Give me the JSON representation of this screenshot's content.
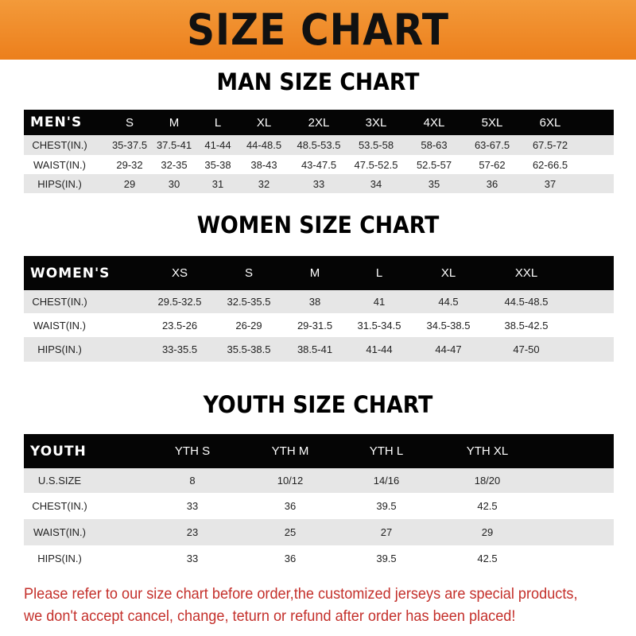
{
  "title": "SIZE CHART",
  "colors": {
    "banner": "#ef8a26",
    "header_row": "#050505",
    "stripe": "#e6e6e6",
    "note": "#c4302b"
  },
  "men": {
    "heading": "MAN SIZE CHART",
    "columns": [
      "MEN'S",
      "S",
      "M",
      "L",
      "XL",
      "2XL",
      "3XL",
      "4XL",
      "5XL",
      "6XL"
    ],
    "rows": [
      [
        "CHEST(IN.)",
        "35-37.5",
        "37.5-41",
        "41-44",
        "44-48.5",
        "48.5-53.5",
        "53.5-58",
        "58-63",
        "63-67.5",
        "67.5-72"
      ],
      [
        "WAIST(IN.)",
        "29-32",
        "32-35",
        "35-38",
        "38-43",
        "43-47.5",
        "47.5-52.5",
        "52.5-57",
        "57-62",
        "62-66.5"
      ],
      [
        "HIPS(IN.)",
        "29",
        "30",
        "31",
        "32",
        "33",
        "34",
        "35",
        "36",
        "37"
      ]
    ]
  },
  "women": {
    "heading": "WOMEN SIZE CHART",
    "columns": [
      "WOMEN'S",
      "XS",
      "S",
      "M",
      "L",
      "XL",
      "XXL"
    ],
    "rows": [
      [
        "CHEST(IN.)",
        "29.5-32.5",
        "32.5-35.5",
        "38",
        "41",
        "44.5",
        "44.5-48.5"
      ],
      [
        "WAIST(IN.)",
        "23.5-26",
        "26-29",
        "29-31.5",
        "31.5-34.5",
        "34.5-38.5",
        "38.5-42.5"
      ],
      [
        "HIPS(IN.)",
        "33-35.5",
        "35.5-38.5",
        "38.5-41",
        "41-44",
        "44-47",
        "47-50"
      ]
    ]
  },
  "youth": {
    "heading": "YOUTH SIZE CHART",
    "columns": [
      "YOUTH",
      "YTH S",
      "YTH M",
      "YTH L",
      "YTH XL"
    ],
    "rows": [
      [
        "U.S.SIZE",
        "8",
        "10/12",
        "14/16",
        "18/20"
      ],
      [
        "CHEST(IN.)",
        "33",
        "36",
        "39.5",
        "42.5"
      ],
      [
        "WAIST(IN.)",
        "23",
        "25",
        "27",
        "29"
      ],
      [
        "HIPS(IN.)",
        "33",
        "36",
        "39.5",
        "42.5"
      ]
    ]
  },
  "note": {
    "line1": "Please refer to our size chart before order,the customized jerseys are special products,",
    "line2": "we don't accept cancel, change, teturn or refund after order has been placed!"
  }
}
